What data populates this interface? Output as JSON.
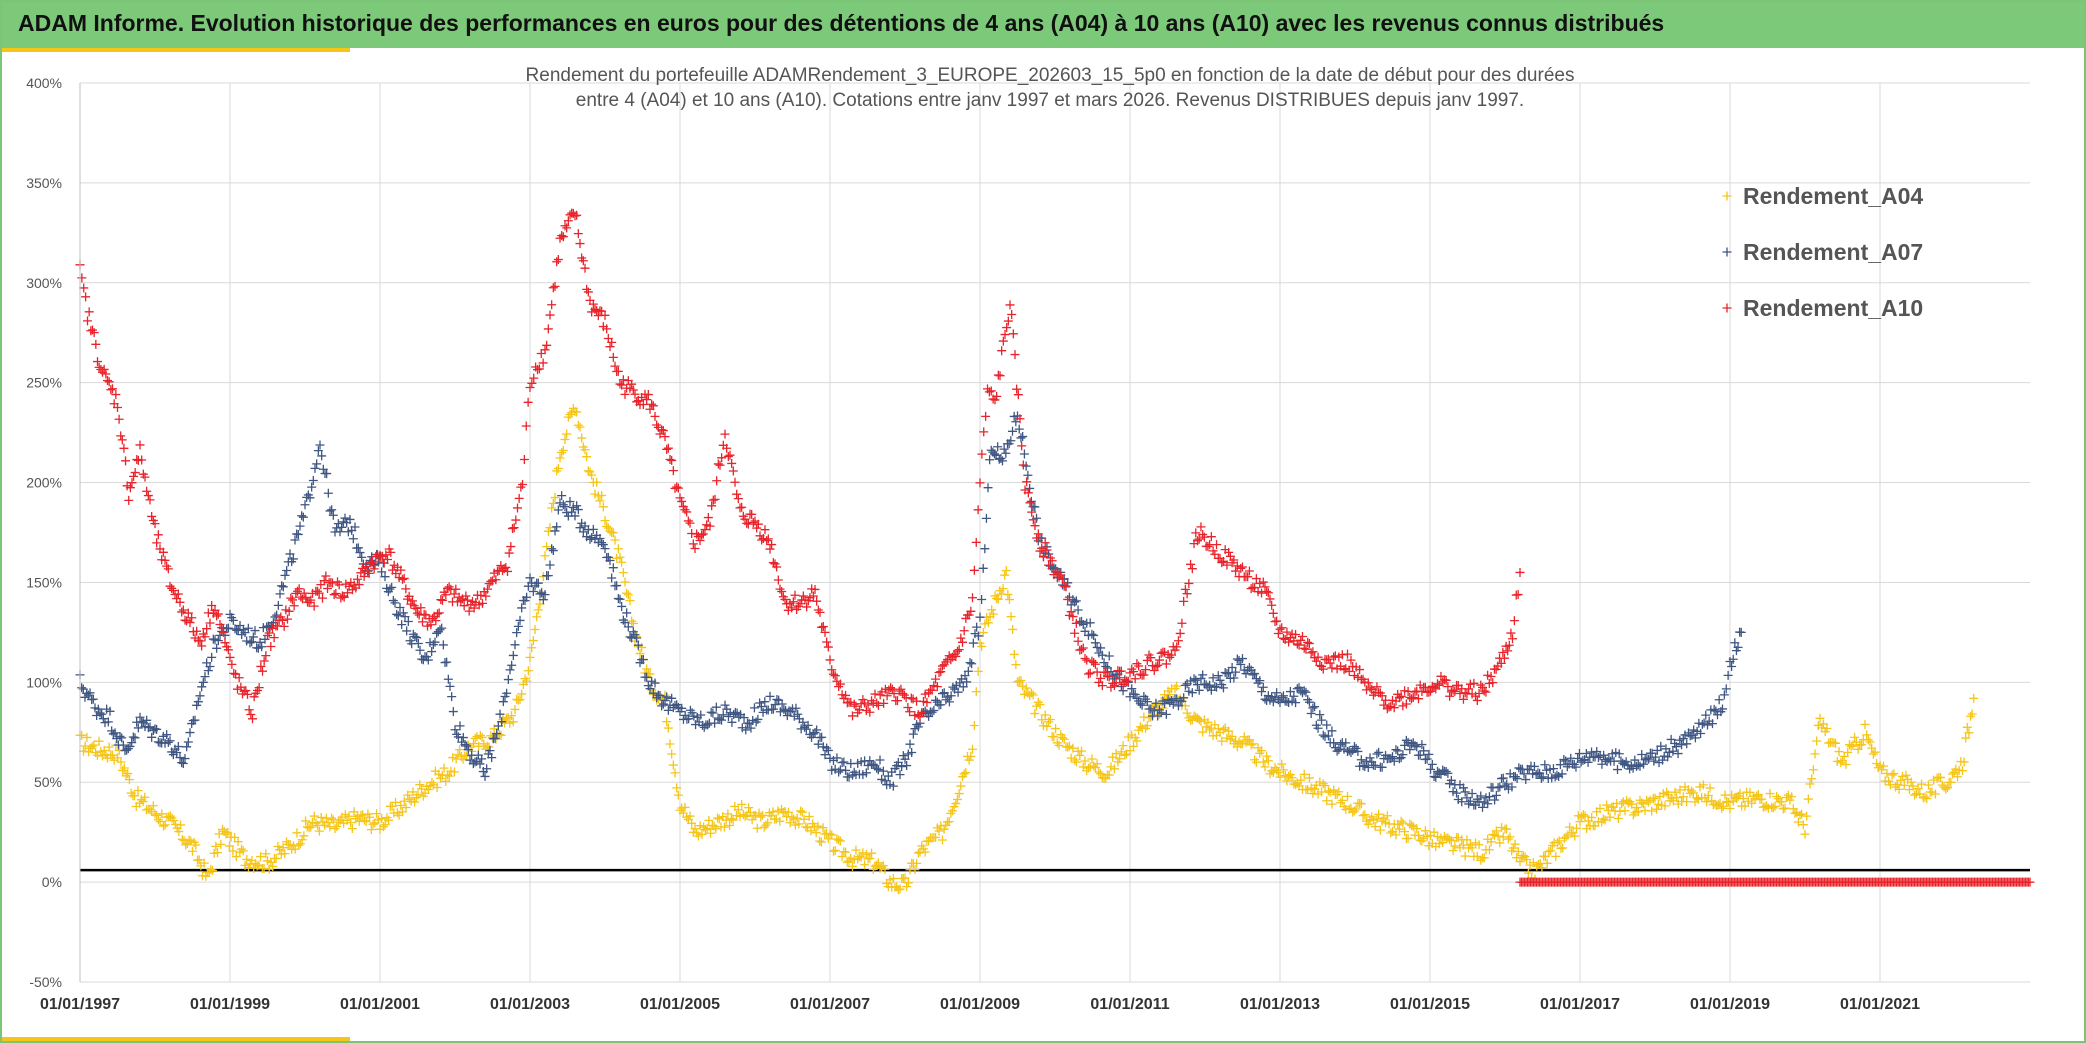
{
  "banner": {
    "title": "ADAM Informe. Evolution historique des performances en euros pour des détentions de 4 ans (A04) à 10 ans (A10) avec les revenus connus distribués"
  },
  "colors": {
    "banner": "#7dc97a",
    "accent": "#f5c518",
    "A04": "#f5c518",
    "A07": "#3f5683",
    "A10": "#e8232a",
    "gridline": "#d9d9d9",
    "reference_line": "#000000"
  },
  "chart_data": {
    "type": "scatter",
    "title": "Rendement du portefeuille ADAMRendement_3_EUROPE_202603_15_5p0  en fonction de la date de début pour des durées",
    "subtitle": "entre 4 (A04) et 10 ans (A10). Cotations entre janv 1997 et mars 2026. Revenus DISTRIBUES depuis janv 1997.",
    "xlabel": "",
    "ylabel": "",
    "xlim": [
      1997.0,
      2023.0
    ],
    "ylim": [
      -50,
      400
    ],
    "y_ticks": [
      -50,
      0,
      50,
      100,
      150,
      200,
      250,
      300,
      350,
      400
    ],
    "y_tick_labels": [
      "-50%",
      "0%",
      "50%",
      "100%",
      "150%",
      "200%",
      "250%",
      "300%",
      "350%",
      "400%"
    ],
    "x_ticks": [
      1997,
      1999,
      2001,
      2003,
      2005,
      2007,
      2009,
      2011,
      2013,
      2015,
      2017,
      2019,
      2021
    ],
    "x_tick_labels": [
      "01/01/1997",
      "01/01/1999",
      "01/01/2001",
      "01/01/2003",
      "01/01/2005",
      "01/01/2007",
      "01/01/2009",
      "01/01/2011",
      "01/01/2013",
      "01/01/2015",
      "01/01/2017",
      "01/01/2019",
      "01/01/2021"
    ],
    "reference_line_y": 6,
    "grid": true,
    "legend_position": "top-right",
    "series": [
      {
        "name": "Rendement_A04",
        "color": "#f5c518",
        "x": [
          1997.0,
          1997.3,
          1997.5,
          1997.75,
          1998.0,
          1998.25,
          1998.5,
          1998.7,
          1998.9,
          1999.2,
          1999.5,
          1999.8,
          2000.1,
          2000.4,
          2000.7,
          2001.0,
          2001.3,
          2001.6,
          2001.9,
          2002.2,
          2002.5,
          2002.8,
          2003.0,
          2003.2,
          2003.4,
          2003.6,
          2003.8,
          2004.0,
          2004.2,
          2004.4,
          2004.6,
          2004.8,
          2005.0,
          2005.2,
          2005.5,
          2005.8,
          2006.1,
          2006.4,
          2006.7,
          2007.0,
          2007.3,
          2007.6,
          2007.8,
          2008.0,
          2008.2,
          2008.5,
          2008.7,
          2008.9,
          2009.0,
          2009.2,
          2009.35,
          2009.5,
          2009.8,
          2010.1,
          2010.4,
          2010.7,
          2011.0,
          2011.3,
          2011.6,
          2011.9,
          2012.2,
          2012.5,
          2012.8,
          2013.0,
          2013.3,
          2013.6,
          2013.9,
          2014.2,
          2014.5,
          2014.8,
          2015.1,
          2015.4,
          2015.7,
          2016.0,
          2016.2,
          2016.4,
          2016.7,
          2017.0,
          2017.4,
          2017.8,
          2018.2,
          2018.6,
          2019.0,
          2019.4,
          2019.8,
          2020.0,
          2020.2,
          2020.5,
          2020.8,
          2021.0,
          2021.3,
          2021.6,
          2021.9,
          2022.1,
          2022.25
        ],
        "values": [
          70,
          66,
          65,
          42,
          35,
          28,
          18,
          2,
          25,
          12,
          10,
          18,
          30,
          28,
          32,
          30,
          38,
          48,
          55,
          68,
          72,
          85,
          110,
          160,
          215,
          240,
          205,
          185,
          160,
          125,
          100,
          90,
          40,
          25,
          30,
          35,
          30,
          35,
          30,
          20,
          12,
          10,
          0,
          -2,
          15,
          25,
          45,
          70,
          120,
          140,
          155,
          100,
          85,
          70,
          60,
          55,
          70,
          85,
          95,
          80,
          75,
          70,
          60,
          55,
          50,
          45,
          40,
          32,
          28,
          25,
          20,
          18,
          15,
          25,
          10,
          5,
          18,
          30,
          35,
          38,
          42,
          45,
          40,
          42,
          40,
          28,
          80,
          60,
          75,
          55,
          50,
          45,
          50,
          60,
          92
        ]
      },
      {
        "name": "Rendement_A07",
        "color": "#3f5683",
        "x": [
          1997.0,
          1997.2,
          1997.4,
          1997.6,
          1997.8,
          1998.0,
          1998.2,
          1998.4,
          1998.6,
          1998.8,
          1999.0,
          1999.2,
          1999.4,
          1999.6,
          1999.8,
          2000.0,
          2000.2,
          2000.4,
          2000.6,
          2000.8,
          2001.0,
          2001.2,
          2001.4,
          2001.6,
          2001.8,
          2002.0,
          2002.2,
          2002.4,
          2002.6,
          2002.8,
          2003.0,
          2003.2,
          2003.4,
          2003.6,
          2003.8,
          2004.0,
          2004.2,
          2004.4,
          2004.6,
          2004.8,
          2005.0,
          2005.3,
          2005.6,
          2005.9,
          2006.2,
          2006.5,
          2006.8,
          2007.0,
          2007.3,
          2007.6,
          2007.8,
          2008.0,
          2008.2,
          2008.5,
          2008.8,
          2009.0,
          2009.15,
          2009.3,
          2009.5,
          2009.8,
          2010.1,
          2010.4,
          2010.7,
          2011.0,
          2011.3,
          2011.6,
          2011.9,
          2012.2,
          2012.5,
          2012.8,
          2013.0,
          2013.3,
          2013.6,
          2013.9,
          2014.2,
          2014.5,
          2014.8,
          2015.1,
          2015.4,
          2015.7,
          2016.0,
          2016.3,
          2016.6,
          2016.9,
          2017.2,
          2017.5,
          2017.8,
          2018.1,
          2018.4,
          2018.7,
          2018.9,
          2019.0,
          2019.15
        ],
        "values": [
          100,
          88,
          82,
          65,
          80,
          75,
          70,
          60,
          95,
          120,
          130,
          125,
          120,
          135,
          160,
          185,
          220,
          175,
          180,
          160,
          160,
          140,
          125,
          110,
          130,
          80,
          65,
          55,
          80,
          120,
          150,
          145,
          190,
          185,
          175,
          170,
          140,
          120,
          100,
          90,
          85,
          80,
          85,
          80,
          90,
          85,
          75,
          60,
          55,
          60,
          50,
          60,
          80,
          90,
          100,
          130,
          220,
          210,
          235,
          170,
          150,
          130,
          110,
          95,
          85,
          90,
          100,
          100,
          110,
          95,
          90,
          95,
          75,
          65,
          60,
          62,
          70,
          55,
          45,
          40,
          50,
          55,
          55,
          60,
          65,
          60,
          60,
          65,
          70,
          80,
          90,
          110,
          125
        ]
      },
      {
        "name": "Rendement_A10",
        "color": "#e8232a",
        "x": [
          1997.0,
          1997.1,
          1997.3,
          1997.5,
          1997.65,
          1997.8,
          1998.0,
          1998.2,
          1998.4,
          1998.6,
          1998.8,
          1999.0,
          1999.1,
          1999.3,
          1999.5,
          1999.7,
          1999.9,
          2000.1,
          2000.3,
          2000.5,
          2000.7,
          2000.9,
          2001.1,
          2001.3,
          2001.5,
          2001.7,
          2001.9,
          2002.1,
          2002.3,
          2002.5,
          2002.7,
          2002.9,
          2003.0,
          2003.1,
          2003.2,
          2003.4,
          2003.6,
          2003.8,
          2004.0,
          2004.2,
          2004.4,
          2004.6,
          2004.8,
          2005.0,
          2005.2,
          2005.4,
          2005.6,
          2005.8,
          2006.0,
          2006.2,
          2006.4,
          2006.6,
          2006.8,
          2007.0,
          2007.3,
          2007.6,
          2007.9,
          2008.2,
          2008.5,
          2008.7,
          2008.9,
          2009.0,
          2009.1,
          2009.2,
          2009.4,
          2009.6,
          2009.8,
          2010.1,
          2010.4,
          2010.7,
          2011.0,
          2011.3,
          2011.6,
          2011.9,
          2012.2,
          2012.5,
          2012.8,
          2013.0,
          2013.3,
          2013.6,
          2013.9,
          2014.2,
          2014.5,
          2014.8,
          2015.1,
          2015.4,
          2015.7,
          2015.95,
          2016.1,
          2016.2
        ],
        "values": [
          305,
          285,
          255,
          240,
          195,
          215,
          175,
          150,
          135,
          120,
          140,
          110,
          100,
          85,
          120,
          130,
          145,
          140,
          150,
          145,
          150,
          160,
          165,
          150,
          135,
          130,
          145,
          140,
          140,
          150,
          160,
          200,
          250,
          260,
          265,
          320,
          335,
          290,
          280,
          250,
          245,
          240,
          220,
          190,
          170,
          180,
          225,
          185,
          180,
          170,
          140,
          140,
          145,
          110,
          85,
          90,
          95,
          85,
          105,
          115,
          140,
          200,
          245,
          240,
          290,
          200,
          170,
          150,
          110,
          100,
          105,
          110,
          115,
          175,
          165,
          155,
          145,
          125,
          120,
          110,
          110,
          95,
          90,
          95,
          100,
          95,
          95,
          110,
          125,
          155
        ]
      }
    ],
    "zero_series_note": {
      "name": "Rendement_A10",
      "x_start": 2016.2,
      "x_end": 2023.0,
      "value": 0
    }
  }
}
